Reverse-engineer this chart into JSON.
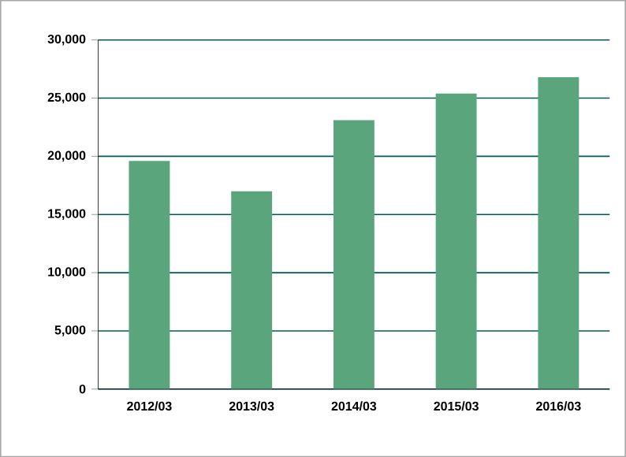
{
  "chart_data": {
    "type": "bar",
    "categories": [
      "2012/03",
      "2013/03",
      "2014/03",
      "2015/03",
      "2016/03"
    ],
    "values": [
      19600,
      17000,
      23100,
      25400,
      26800
    ],
    "color": "#5aa57c",
    "ylim": [
      0,
      30000
    ],
    "yticks": [
      0,
      {
        "value": 5000,
        "label": "5,000"
      },
      {
        "value": 10000,
        "label": "10,000"
      },
      {
        "value": 15000,
        "label": "15,000"
      },
      {
        "value": 20000,
        "label": "20,000"
      },
      {
        "value": 25000,
        "label": "25,000"
      },
      {
        "value": 30000,
        "label": "30,000"
      }
    ],
    "grid": "y"
  }
}
